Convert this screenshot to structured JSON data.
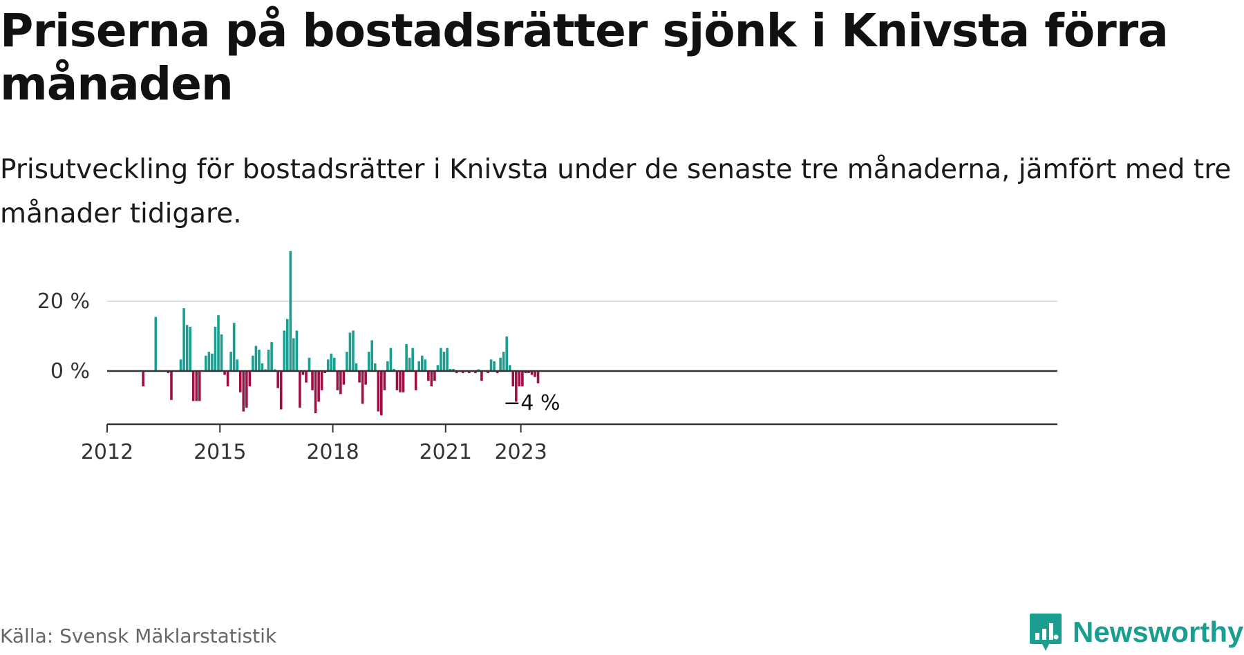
{
  "title": "Priserna på bostadsrätter sjönk i Knivsta förra månaden",
  "subtitle": "Prisutveckling för bostadsrätter i Knivsta under de senaste tre månaderna, jämfört med tre månader tidigare.",
  "source": "Källa: Svensk Mäklarstatistik",
  "brand": {
    "name": "Newsworthy",
    "icon": "newsworthy-chart-bubble-icon"
  },
  "colors": {
    "positive": "#1a9e8f",
    "negative": "#9e0f45",
    "grid": "#dddddd",
    "axis": "#333333"
  },
  "chart_data": {
    "type": "bar",
    "x_start": "2012-01",
    "x_ticks": [
      "2012",
      "2015",
      "2018",
      "2021",
      "2023"
    ],
    "y_ticks": [
      "20 %",
      "0 %"
    ],
    "y_tick_values": [
      20,
      0
    ],
    "ylim": [
      -15,
      35
    ],
    "last_value_label": "−4 %",
    "grid": true,
    "values": [
      0,
      0,
      0,
      0,
      0,
      0,
      0,
      0,
      0,
      0,
      0,
      -4.4,
      0,
      0,
      0,
      15.5,
      0,
      0,
      0,
      -0.6,
      -8.3,
      0,
      0,
      3.3,
      18.0,
      13.2,
      12.7,
      -8.6,
      -8.6,
      -8.6,
      0,
      4.4,
      5.5,
      5.0,
      12.7,
      16.0,
      10.5,
      -1.1,
      -4.4,
      5.5,
      13.8,
      3.3,
      -6.1,
      -11.6,
      -10.5,
      -4.4,
      4.4,
      7.2,
      6.1,
      2.2,
      0.5,
      6.1,
      8.3,
      0.5,
      -4.9,
      -11.0,
      11.6,
      14.9,
      34.4,
      9.4,
      11.6,
      -10.5,
      -1.1,
      -3.3,
      3.8,
      -5.5,
      -12.1,
      -8.8,
      -5.5,
      -0.6,
      3.3,
      5.0,
      3.8,
      -5.5,
      -6.6,
      -3.9,
      5.5,
      11.0,
      11.6,
      2.2,
      -3.3,
      -9.4,
      -3.9,
      5.5,
      8.8,
      2.2,
      -11.6,
      -12.7,
      -5.5,
      2.8,
      6.6,
      0.6,
      -5.5,
      -6.1,
      -6.1,
      7.7,
      3.8,
      6.6,
      -5.5,
      2.8,
      4.4,
      3.3,
      -2.8,
      -4.4,
      -2.8,
      1.7,
      6.6,
      5.5,
      6.6,
      0.6,
      0.6,
      -0.6,
      0,
      -0.6,
      0,
      -0.6,
      0,
      -0.6,
      0.5,
      -2.8,
      0,
      -0.6,
      3.3,
      2.8,
      -0.6,
      3.8,
      5.5,
      9.9,
      1.7,
      -4.4,
      -8.8,
      -4.4,
      -4.4,
      -0.6,
      -0.6,
      -1.1,
      -1.7,
      -3.5
    ]
  }
}
